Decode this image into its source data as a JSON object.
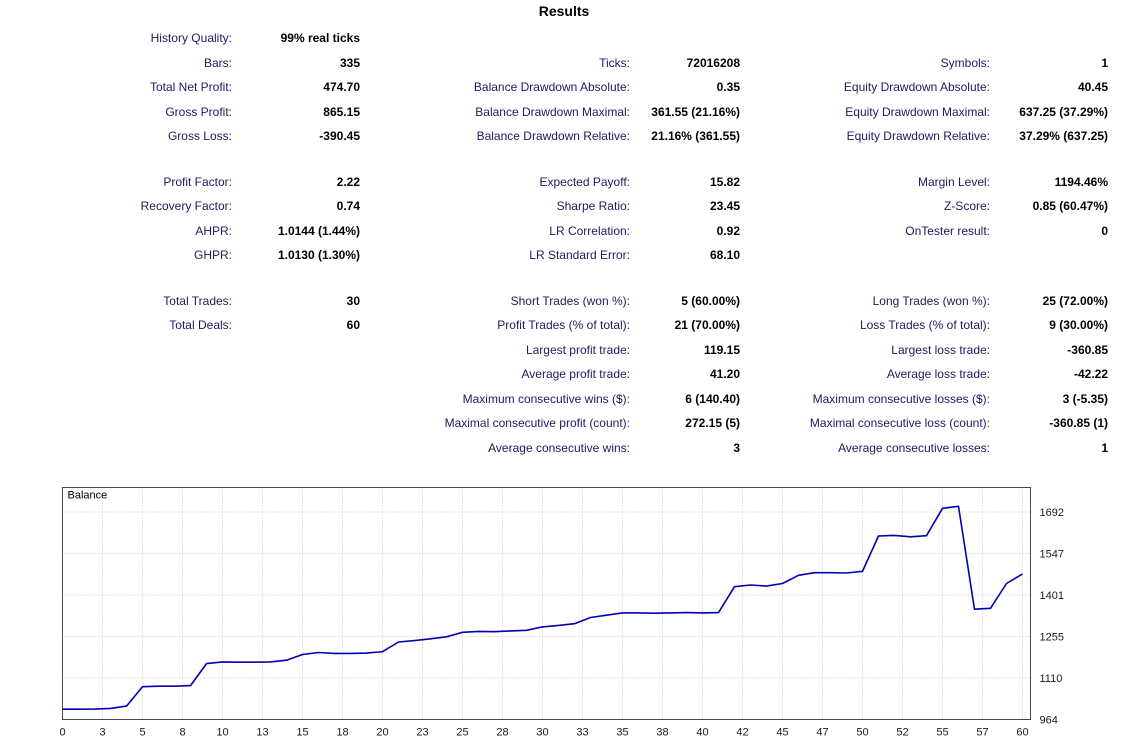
{
  "title": "Results",
  "report": {
    "sections": [
      {
        "rows": [
          [
            "History Quality:",
            "99% real ticks",
            "",
            "",
            "",
            ""
          ],
          [
            "Bars:",
            "335",
            "Ticks:",
            "72016208",
            "Symbols:",
            "1"
          ],
          [
            "Total Net Profit:",
            "474.70",
            "Balance Drawdown Absolute:",
            "0.35",
            "Equity Drawdown Absolute:",
            "40.45"
          ],
          [
            "Gross Profit:",
            "865.15",
            "Balance Drawdown Maximal:",
            "361.55 (21.16%)",
            "Equity Drawdown Maximal:",
            "637.25 (37.29%)"
          ],
          [
            "Gross Loss:",
            "-390.45",
            "Balance Drawdown Relative:",
            "21.16% (361.55)",
            "Equity Drawdown Relative:",
            "37.29% (637.25)"
          ]
        ]
      },
      {
        "rows": [
          [
            "Profit Factor:",
            "2.22",
            "Expected Payoff:",
            "15.82",
            "Margin Level:",
            "1194.46%"
          ],
          [
            "Recovery Factor:",
            "0.74",
            "Sharpe Ratio:",
            "23.45",
            "Z-Score:",
            "0.85 (60.47%)"
          ],
          [
            "AHPR:",
            "1.0144 (1.44%)",
            "LR Correlation:",
            "0.92",
            "OnTester result:",
            "0"
          ],
          [
            "GHPR:",
            "1.0130 (1.30%)",
            "LR Standard Error:",
            "68.10",
            "",
            ""
          ]
        ]
      },
      {
        "rows": [
          [
            "Total Trades:",
            "30",
            "Short Trades (won %):",
            "5 (60.00%)",
            "Long Trades (won %):",
            "25 (72.00%)"
          ],
          [
            "Total Deals:",
            "60",
            "Profit Trades (% of total):",
            "21 (70.00%)",
            "Loss Trades (% of total):",
            "9 (30.00%)"
          ],
          [
            "",
            "",
            "Largest profit trade:",
            "119.15",
            "Largest loss trade:",
            "-360.85"
          ],
          [
            "",
            "",
            "Average profit trade:",
            "41.20",
            "Average loss trade:",
            "-42.22"
          ],
          [
            "",
            "",
            "Maximum consecutive wins ($):",
            "6 (140.40)",
            "Maximum consecutive losses ($):",
            "3 (-5.35)"
          ],
          [
            "",
            "",
            "Maximal consecutive profit (count):",
            "272.15 (5)",
            "Maximal consecutive loss (count):",
            "-360.85 (1)"
          ],
          [
            "",
            "",
            "Average consecutive wins:",
            "3",
            "Average consecutive losses:",
            "1"
          ]
        ]
      }
    ]
  },
  "chart_data": {
    "type": "line",
    "title": "Balance",
    "series": [
      {
        "name": "Balance",
        "color": "#0000b4",
        "x": [
          0,
          1,
          2,
          3,
          4,
          5,
          6,
          7,
          8,
          9,
          10,
          11,
          12,
          13,
          14,
          15,
          16,
          17,
          18,
          19,
          20,
          21,
          22,
          23,
          24,
          25,
          26,
          27,
          28,
          29,
          30,
          31,
          32,
          33,
          34,
          35,
          36,
          37,
          38,
          39,
          40,
          41,
          42,
          43,
          44,
          45,
          46,
          47,
          48,
          49,
          50,
          51,
          52,
          53,
          54,
          55,
          56,
          57,
          58,
          59,
          60
        ],
        "values": [
          1000,
          1000,
          1000.5,
          1003,
          1011,
          1079,
          1081,
          1081,
          1083,
          1160,
          1166,
          1165,
          1165,
          1166,
          1172,
          1192,
          1199,
          1196,
          1196,
          1197,
          1202,
          1236,
          1241,
          1247,
          1254,
          1270,
          1273,
          1272,
          1275,
          1277,
          1289,
          1294,
          1300,
          1322,
          1330,
          1338,
          1338,
          1337,
          1338,
          1339,
          1338,
          1339,
          1430,
          1436,
          1432,
          1441,
          1470,
          1479,
          1479,
          1478,
          1484,
          1608,
          1610,
          1605,
          1609,
          1705,
          1712,
          1351,
          1354,
          1441,
          1474.7
        ]
      }
    ],
    "x_ticks": [
      0,
      3,
      5,
      8,
      10,
      13,
      15,
      18,
      20,
      23,
      25,
      28,
      30,
      33,
      35,
      38,
      40,
      42,
      45,
      47,
      50,
      52,
      55,
      57,
      60
    ],
    "y_ticks": [
      964,
      1110,
      1255,
      1401,
      1547,
      1692
    ],
    "xlim": [
      0,
      60
    ],
    "ylim": [
      964,
      1778
    ],
    "grid": true,
    "legend_position": "top-left"
  },
  "colors": {
    "label_text": "#1c1c5e",
    "value_text": "#000000",
    "series_line": "#0000b4",
    "grid_line": "#c9c9c9",
    "plot_border": "#474747"
  }
}
